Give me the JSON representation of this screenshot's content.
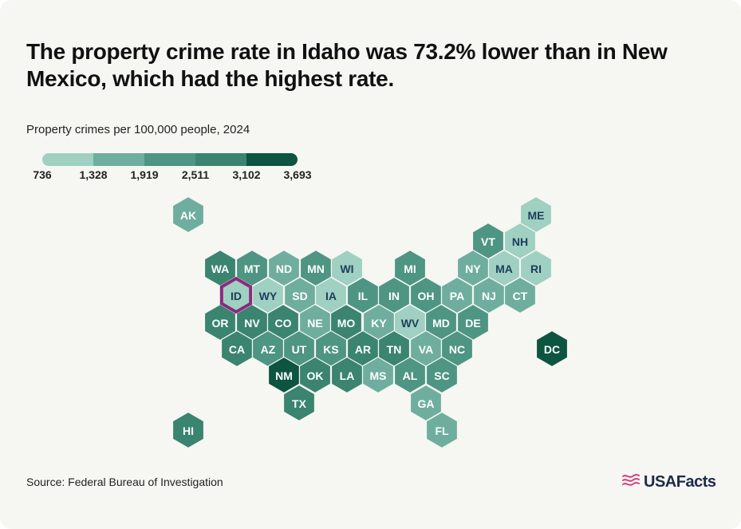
{
  "title": "The property crime rate in Idaho was 73.2% lower than in New Mexico, which had the highest rate.",
  "subtitle": "Property crimes per 100,000 people, 2024",
  "legend": {
    "labels": [
      "736",
      "1,328",
      "1,919",
      "2,511",
      "3,102",
      "3,693"
    ],
    "colors": [
      "#9fd0c2",
      "#6fae9e",
      "#4e9583",
      "#3a8470",
      "#0d5441"
    ]
  },
  "highlight": {
    "state": "ID",
    "color": "#8a2a7e"
  },
  "source": "Source: Federal Bureau of Investigation",
  "logo": {
    "text": "USAFacts",
    "icon": "usafacts-flag-icon",
    "icon_color": "#d0437e"
  },
  "chart_data": {
    "type": "hex-tile-map",
    "states": [
      {
        "code": "AK",
        "bin": 1
      },
      {
        "code": "ME",
        "bin": 0
      },
      {
        "code": "VT",
        "bin": 2
      },
      {
        "code": "NH",
        "bin": 0
      },
      {
        "code": "WA",
        "bin": 3
      },
      {
        "code": "MT",
        "bin": 2
      },
      {
        "code": "ND",
        "bin": 1
      },
      {
        "code": "MN",
        "bin": 2
      },
      {
        "code": "WI",
        "bin": 0
      },
      {
        "code": "MI",
        "bin": 2
      },
      {
        "code": "NY",
        "bin": 1
      },
      {
        "code": "MA",
        "bin": 0
      },
      {
        "code": "RI",
        "bin": 0
      },
      {
        "code": "ID",
        "bin": 0
      },
      {
        "code": "WY",
        "bin": 0
      },
      {
        "code": "SD",
        "bin": 1
      },
      {
        "code": "IA",
        "bin": 0
      },
      {
        "code": "IL",
        "bin": 2
      },
      {
        "code": "IN",
        "bin": 2
      },
      {
        "code": "OH",
        "bin": 2
      },
      {
        "code": "PA",
        "bin": 1
      },
      {
        "code": "NJ",
        "bin": 1
      },
      {
        "code": "CT",
        "bin": 1
      },
      {
        "code": "OR",
        "bin": 3
      },
      {
        "code": "NV",
        "bin": 3
      },
      {
        "code": "CO",
        "bin": 3
      },
      {
        "code": "NE",
        "bin": 1
      },
      {
        "code": "MO",
        "bin": 3
      },
      {
        "code": "KY",
        "bin": 1
      },
      {
        "code": "WV",
        "bin": 0
      },
      {
        "code": "MD",
        "bin": 2
      },
      {
        "code": "DE",
        "bin": 2
      },
      {
        "code": "CA",
        "bin": 3
      },
      {
        "code": "AZ",
        "bin": 2
      },
      {
        "code": "UT",
        "bin": 2
      },
      {
        "code": "KS",
        "bin": 2
      },
      {
        "code": "AR",
        "bin": 3
      },
      {
        "code": "TN",
        "bin": 3
      },
      {
        "code": "VA",
        "bin": 1
      },
      {
        "code": "NC",
        "bin": 2
      },
      {
        "code": "DC",
        "bin": 4
      },
      {
        "code": "NM",
        "bin": 4
      },
      {
        "code": "OK",
        "bin": 3
      },
      {
        "code": "LA",
        "bin": 3
      },
      {
        "code": "MS",
        "bin": 1
      },
      {
        "code": "AL",
        "bin": 2
      },
      {
        "code": "SC",
        "bin": 2
      },
      {
        "code": "TX",
        "bin": 3
      },
      {
        "code": "GA",
        "bin": 1
      },
      {
        "code": "HI",
        "bin": 3
      },
      {
        "code": "FL",
        "bin": 1
      }
    ]
  }
}
